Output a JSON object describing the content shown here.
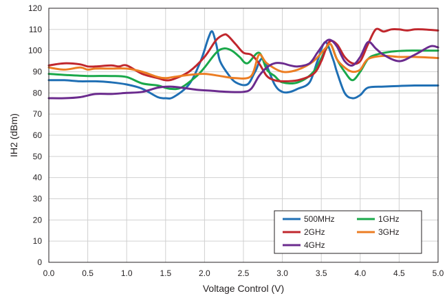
{
  "chart_data": {
    "type": "line",
    "title": "",
    "xlabel": "Voltage Control (V)",
    "ylabel": "IH2 (dBm)",
    "xlim": [
      0,
      5
    ],
    "ylim": [
      0,
      120
    ],
    "xticks": [
      "0.0",
      "0.5",
      "1.0",
      "1.5",
      "2.0",
      "2.5",
      "3.0",
      "3.5",
      "4.0",
      "4.5",
      "5.0"
    ],
    "yticks": [
      "0",
      "10",
      "20",
      "30",
      "40",
      "50",
      "60",
      "70",
      "80",
      "90",
      "100",
      "110",
      "120"
    ],
    "grid": true,
    "legend_position": "bottom-right",
    "series": [
      {
        "name": "500MHz",
        "color": "#1f6fb4",
        "x": [
          0,
          0.2,
          0.4,
          0.6,
          0.8,
          1.0,
          1.2,
          1.4,
          1.5,
          1.6,
          1.8,
          1.95,
          2.05,
          2.1,
          2.15,
          2.2,
          2.3,
          2.4,
          2.55,
          2.65,
          2.75,
          2.9,
          3.0,
          3.1,
          3.2,
          3.35,
          3.45,
          3.55,
          3.65,
          3.7,
          3.8,
          3.9,
          4.0,
          4.1,
          4.3,
          4.5,
          4.7,
          5.0
        ],
        "y": [
          86,
          86,
          85.5,
          85.5,
          85,
          84,
          82,
          78,
          77.5,
          78,
          84,
          95,
          106,
          109,
          103,
          95,
          89,
          85,
          84,
          90,
          96,
          84,
          80.5,
          80.5,
          82,
          85,
          95,
          104,
          96,
          90,
          80,
          77.5,
          79,
          82.5,
          83,
          83.3,
          83.5,
          83.5
        ]
      },
      {
        "name": "1GHz",
        "color": "#1aa84a",
        "x": [
          0,
          0.2,
          0.5,
          0.8,
          1.0,
          1.2,
          1.4,
          1.55,
          1.7,
          1.9,
          2.0,
          2.15,
          2.25,
          2.35,
          2.45,
          2.55,
          2.7,
          2.8,
          2.9,
          3.0,
          3.2,
          3.4,
          3.55,
          3.62,
          3.7,
          3.8,
          3.9,
          4.0,
          4.1,
          4.2,
          4.4,
          4.6,
          4.8,
          5.0
        ],
        "y": [
          89,
          88.5,
          88,
          88,
          87.5,
          84.5,
          83.5,
          82,
          82.5,
          88,
          92,
          99,
          101,
          100,
          97,
          94,
          99,
          91,
          88,
          85,
          85,
          90,
          100,
          103,
          96,
          90,
          86,
          90,
          96,
          98,
          99.5,
          100,
          100,
          100
        ]
      },
      {
        "name": "2GHz",
        "color": "#c0272d",
        "x": [
          0,
          0.2,
          0.4,
          0.5,
          0.6,
          0.8,
          0.9,
          1.0,
          1.2,
          1.4,
          1.5,
          1.6,
          1.8,
          2.0,
          2.15,
          2.25,
          2.3,
          2.4,
          2.5,
          2.6,
          2.7,
          2.8,
          2.9,
          3.0,
          3.2,
          3.4,
          3.5,
          3.6,
          3.7,
          3.8,
          3.9,
          4.0,
          4.1,
          4.2,
          4.3,
          4.4,
          4.5,
          4.6,
          4.7,
          4.8,
          5.0
        ],
        "y": [
          93,
          94,
          93.5,
          92.5,
          92.5,
          93,
          92.5,
          93,
          89,
          87,
          86,
          86.5,
          90,
          97,
          105,
          107.5,
          107,
          103,
          99,
          98,
          94,
          88,
          86,
          85.5,
          86,
          89,
          95,
          104,
          103,
          97,
          94,
          95,
          103,
          110,
          109,
          110,
          110,
          109.5,
          110,
          110,
          109.5
        ]
      },
      {
        "name": "3GHz",
        "color": "#ec7d23",
        "x": [
          0,
          0.2,
          0.4,
          0.5,
          0.6,
          0.8,
          1.0,
          1.2,
          1.4,
          1.5,
          1.6,
          1.8,
          2.0,
          2.2,
          2.4,
          2.6,
          2.7,
          2.8,
          3.0,
          3.2,
          3.4,
          3.55,
          3.62,
          3.7,
          3.8,
          3.9,
          4.0,
          4.1,
          4.3,
          4.5,
          4.7,
          5.0
        ],
        "y": [
          92,
          91,
          92,
          91,
          91.5,
          91.5,
          91.5,
          90,
          87.5,
          87,
          87.5,
          88.5,
          89,
          88,
          87,
          88,
          98,
          94,
          90,
          91,
          95,
          101,
          103,
          96,
          92,
          90,
          91,
          96,
          97.5,
          97,
          97,
          96.5
        ]
      },
      {
        "name": "4GHz",
        "color": "#6b2b8e",
        "x": [
          0,
          0.2,
          0.4,
          0.6,
          0.8,
          1.0,
          1.2,
          1.4,
          1.55,
          1.7,
          1.9,
          2.1,
          2.3,
          2.5,
          2.6,
          2.7,
          2.8,
          2.9,
          3.0,
          3.1,
          3.2,
          3.35,
          3.45,
          3.55,
          3.62,
          3.7,
          3.8,
          3.9,
          4.0,
          4.1,
          4.2,
          4.3,
          4.5,
          4.7,
          4.9,
          5.0
        ],
        "y": [
          77.5,
          77.5,
          78,
          79.5,
          79.5,
          80,
          80.5,
          82.5,
          83,
          82.5,
          81.5,
          81,
          80.5,
          80.5,
          82,
          88,
          92,
          94,
          94,
          93,
          92.5,
          94,
          99,
          104,
          105,
          102,
          95,
          93,
          97,
          104,
          101,
          98,
          95,
          98,
          102,
          101.5
        ]
      }
    ]
  }
}
